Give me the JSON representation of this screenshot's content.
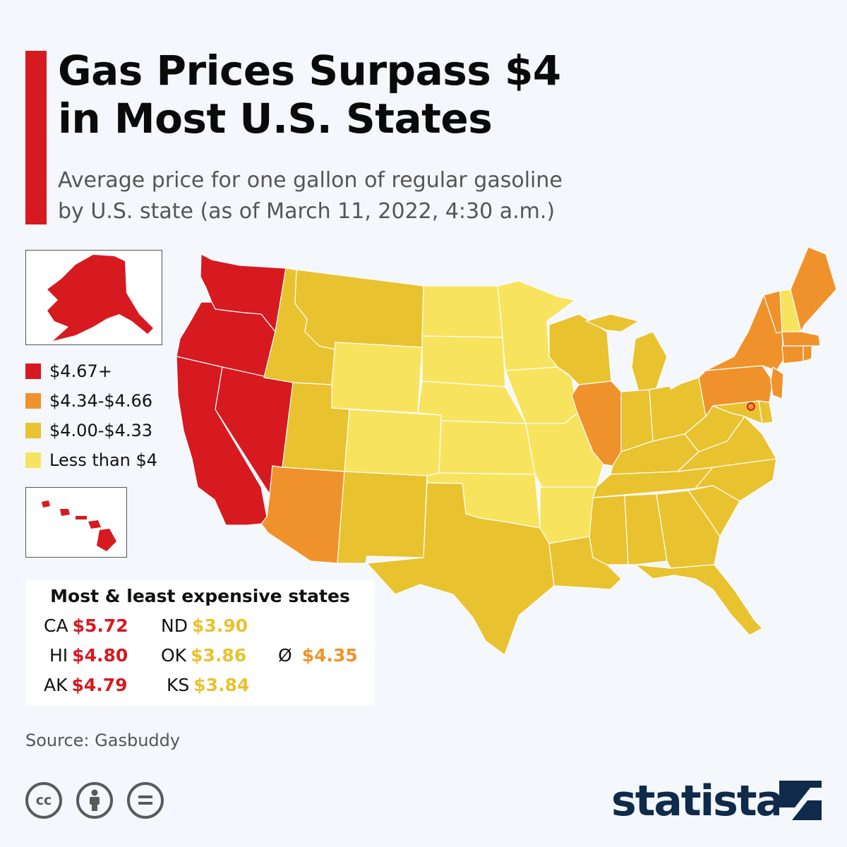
{
  "header": {
    "title_lines": [
      "Gas Prices Surpass $4",
      "in Most U.S. States"
    ],
    "subtitle_lines": [
      "Average price for one gallon of regular gasoline",
      "by U.S. state (as of March 11, 2022, 4:30 a.m.)"
    ]
  },
  "colors": {
    "accent": "#d71920",
    "tier_1": "#d71920",
    "tier_2": "#f0922b",
    "tier_3": "#e9c22f",
    "tier_4": "#f8e35f",
    "border": "#ffffff"
  },
  "legend": {
    "items": [
      {
        "label": "$4.67+",
        "color": "#d71920"
      },
      {
        "label": "$4.34-$4.66",
        "color": "#f0922b"
      },
      {
        "label": "$4.00-$4.33",
        "color": "#e9c22f"
      },
      {
        "label": "Less than $4",
        "color": "#f8e35f"
      }
    ]
  },
  "map": {
    "price_tiers_by_state": {
      "WA": 1,
      "OR": 1,
      "CA": 1,
      "NV": 1,
      "AK": 1,
      "HI": 1,
      "AZ": 2,
      "IL": 2,
      "PA": 2,
      "NY": 2,
      "NJ": 2,
      "VT": 2,
      "ME": 2,
      "MA": 2,
      "CT": 2,
      "RI": 2,
      "DC": 2,
      "ID": 3,
      "MT": 3,
      "UT": 3,
      "NM": 3,
      "TX": 3,
      "LA": 3,
      "WI": 3,
      "MI": 3,
      "IN": 3,
      "OH": 3,
      "KY": 3,
      "TN": 3,
      "MS": 3,
      "AL": 3,
      "GA": 3,
      "FL": 3,
      "SC": 3,
      "NC": 3,
      "VA": 3,
      "WV": 3,
      "MD": 3,
      "DE": 3,
      "WY": 4,
      "CO": 4,
      "ND": 4,
      "SD": 4,
      "NE": 4,
      "KS": 4,
      "OK": 4,
      "MN": 4,
      "IA": 4,
      "MO": 4,
      "AR": 4,
      "NH": 4
    }
  },
  "summary_table": {
    "title": "Most & least expensive states",
    "most_expensive": [
      {
        "state": "CA",
        "price": "$5.72"
      },
      {
        "state": "HI",
        "price": "$4.80"
      },
      {
        "state": "AK",
        "price": "$4.79"
      }
    ],
    "least_expensive": [
      {
        "state": "ND",
        "price": "$3.90"
      },
      {
        "state": "OK",
        "price": "$3.86"
      },
      {
        "state": "KS",
        "price": "$3.84"
      }
    ],
    "average": {
      "symbol": "Ø",
      "price": "$4.35"
    }
  },
  "footer": {
    "source": "Source: Gasbuddy",
    "license_icons": [
      {
        "name": "cc-icon",
        "glyph": "cc"
      },
      {
        "name": "attribution-icon",
        "glyph": "person"
      },
      {
        "name": "no-derivatives-icon",
        "glyph": "="
      }
    ],
    "brand": "statista"
  }
}
